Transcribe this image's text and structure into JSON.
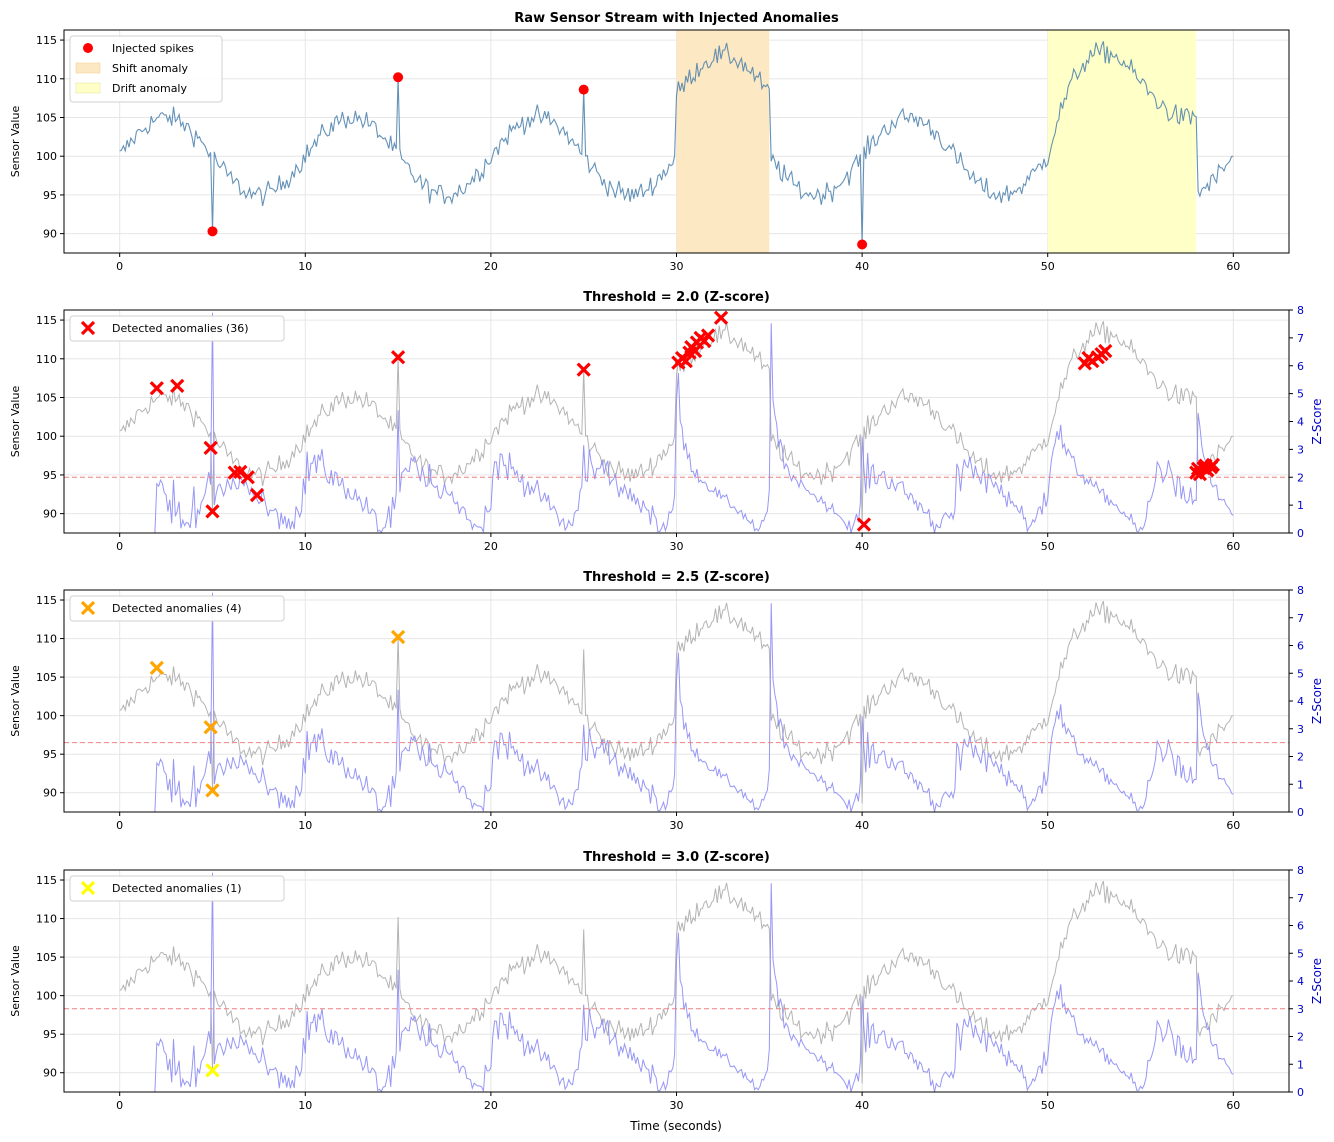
{
  "figure": {
    "xlabel": "Time (seconds)"
  },
  "chart_data": [
    {
      "type": "line",
      "title": "Raw Sensor Stream with Injected Anomalies",
      "ylabel": "Sensor Value",
      "xlim": [
        -3,
        63
      ],
      "ylim": [
        87.5,
        116.3
      ],
      "xticks": [
        0,
        10,
        20,
        30,
        40,
        50,
        60
      ],
      "yticks": [
        90,
        95,
        100,
        105,
        110,
        115
      ],
      "grid": true,
      "series_color": "#4a7fab",
      "legend": [
        "Injected spikes",
        "Shift anomaly",
        "Drift anomaly"
      ],
      "legend_position": "upper-left",
      "spikes": [
        {
          "x": 5.0,
          "y": 90.3
        },
        {
          "x": 15.0,
          "y": 110.2
        },
        {
          "x": 25.0,
          "y": 108.6
        },
        {
          "x": 40.0,
          "y": 88.6
        }
      ],
      "shift_region": [
        30,
        35
      ],
      "drift_region": [
        50,
        58
      ],
      "shift_color": "#fde8c4",
      "drift_color": "#ffffc8",
      "spike_color": "#ff0000"
    },
    {
      "type": "line",
      "title": "Threshold = 2.0 (Z-score)",
      "ylabel": "Sensor Value",
      "ylabel2": "Z-Score",
      "threshold": 2.0,
      "marker_color": "#ff0000",
      "legend": [
        "Detected anomalies (36)"
      ],
      "legend_position": "upper-left",
      "detected": [
        {
          "x": 2.0,
          "y": 106.2
        },
        {
          "x": 3.1,
          "y": 106.5
        },
        {
          "x": 4.9,
          "y": 98.5
        },
        {
          "x": 5.0,
          "y": 90.3
        },
        {
          "x": 6.2,
          "y": 95.3
        },
        {
          "x": 6.5,
          "y": 95.4
        },
        {
          "x": 6.9,
          "y": 94.7
        },
        {
          "x": 7.4,
          "y": 92.4
        },
        {
          "x": 15.0,
          "y": 110.2
        },
        {
          "x": 25.0,
          "y": 108.6
        },
        {
          "x": 30.1,
          "y": 109.5
        },
        {
          "x": 30.3,
          "y": 110.1
        },
        {
          "x": 30.5,
          "y": 109.7
        },
        {
          "x": 30.7,
          "y": 110.8
        },
        {
          "x": 30.8,
          "y": 111.5
        },
        {
          "x": 31.0,
          "y": 111.0
        },
        {
          "x": 31.1,
          "y": 112.1
        },
        {
          "x": 31.3,
          "y": 112.7
        },
        {
          "x": 31.5,
          "y": 112.3
        },
        {
          "x": 31.7,
          "y": 113.0
        },
        {
          "x": 32.4,
          "y": 115.3
        },
        {
          "x": 40.1,
          "y": 88.6
        },
        {
          "x": 52.0,
          "y": 109.4
        },
        {
          "x": 52.2,
          "y": 110.1
        },
        {
          "x": 52.4,
          "y": 109.7
        },
        {
          "x": 52.7,
          "y": 110.2
        },
        {
          "x": 52.9,
          "y": 110.6
        },
        {
          "x": 53.1,
          "y": 111.0
        },
        {
          "x": 58.0,
          "y": 95.3
        },
        {
          "x": 58.1,
          "y": 95.8
        },
        {
          "x": 58.2,
          "y": 95.1
        },
        {
          "x": 58.4,
          "y": 95.9
        },
        {
          "x": 58.5,
          "y": 96.2
        },
        {
          "x": 58.6,
          "y": 95.6
        },
        {
          "x": 58.8,
          "y": 96.0
        },
        {
          "x": 58.9,
          "y": 96.3
        }
      ]
    },
    {
      "type": "line",
      "title": "Threshold = 2.5 (Z-score)",
      "ylabel": "Sensor Value",
      "ylabel2": "Z-Score",
      "threshold": 2.5,
      "marker_color": "#ffa500",
      "legend": [
        "Detected anomalies (4)"
      ],
      "legend_position": "upper-left",
      "detected": [
        {
          "x": 2.0,
          "y": 106.2
        },
        {
          "x": 4.9,
          "y": 98.5
        },
        {
          "x": 5.0,
          "y": 90.3
        },
        {
          "x": 15.0,
          "y": 110.2
        }
      ]
    },
    {
      "type": "line",
      "title": "Threshold = 3.0 (Z-score)",
      "ylabel": "Sensor Value",
      "ylabel2": "Z-Score",
      "threshold": 3.0,
      "marker_color": "#ffff00",
      "legend": [
        "Detected anomalies (1)"
      ],
      "legend_position": "upper-left",
      "detected": [
        {
          "x": 5.0,
          "y": 90.3
        }
      ]
    }
  ],
  "shared": {
    "y2lim": [
      0,
      8
    ],
    "y2ticks": [
      0,
      1,
      2,
      3,
      4,
      5,
      6,
      7,
      8
    ],
    "sensor_gray": "#b4b4b4",
    "zscore_color": "#8c8cf5",
    "threshold_line_color": "#f08080",
    "axis_blue": "#0000cc"
  }
}
